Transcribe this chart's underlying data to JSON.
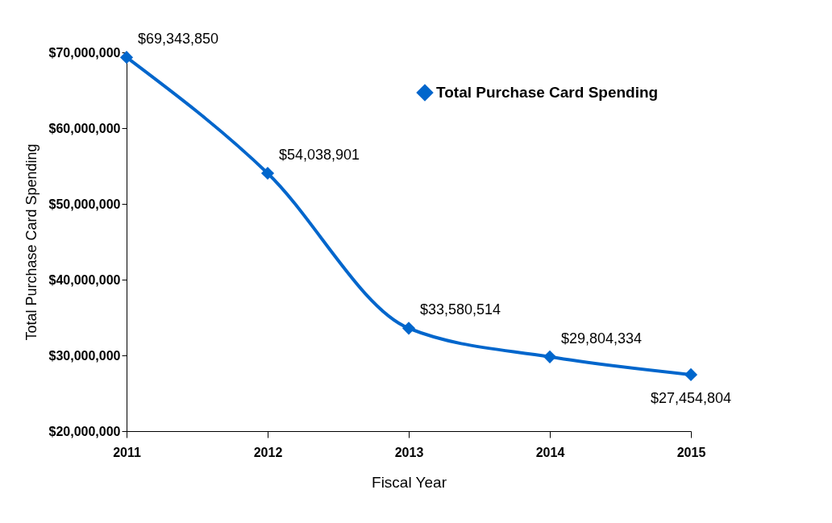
{
  "chart_data": {
    "type": "line",
    "xlabel": "Fiscal Year",
    "ylabel": "Total Purchase Card Spending",
    "categories": [
      "2011",
      "2012",
      "2013",
      "2014",
      "2015"
    ],
    "series": [
      {
        "name": "Total Purchase Card Spending",
        "color": "#0066cc",
        "values": [
          69343850,
          54038901,
          33580514,
          29804334,
          27454804
        ],
        "value_labels": [
          "$69,343,850",
          "$54,038,901",
          "$33,580,514",
          "$29,804,334",
          "$27,454,804"
        ]
      }
    ],
    "ylim": [
      20000000,
      70000000
    ],
    "yticks": [
      {
        "value": 20000000,
        "label": "$20,000,000"
      },
      {
        "value": 30000000,
        "label": "$30,000,000"
      },
      {
        "value": 40000000,
        "label": "$40,000,000"
      },
      {
        "value": 50000000,
        "label": "$50,000,000"
      },
      {
        "value": 60000000,
        "label": "$60,000,000"
      },
      {
        "value": 70000000,
        "label": "$70,000,000"
      }
    ],
    "grid": false,
    "legend": "top right",
    "marker": "diamond",
    "line_style": "solid"
  }
}
